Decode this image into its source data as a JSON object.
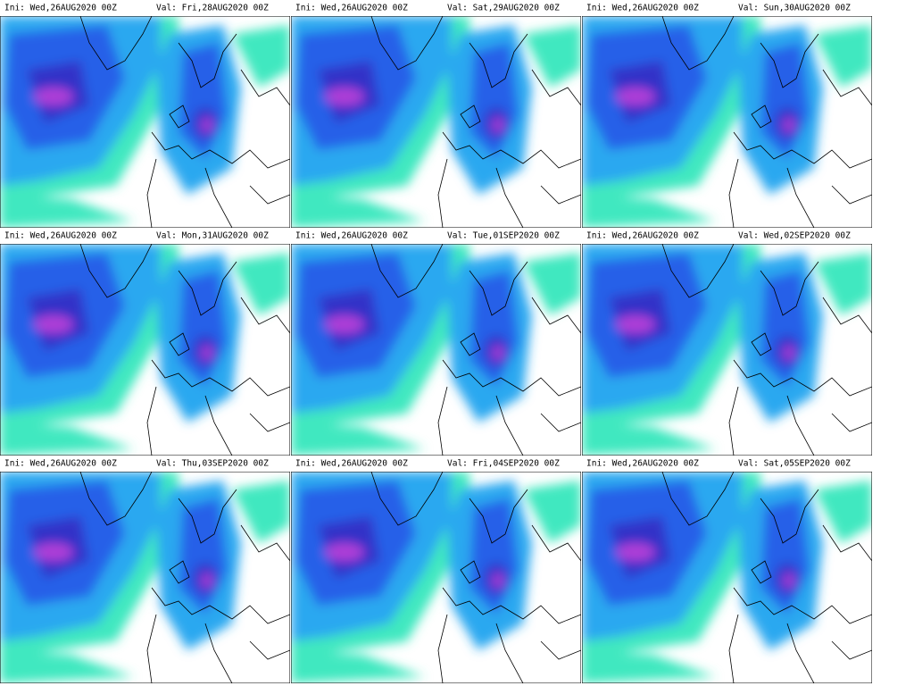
{
  "panels": [
    {
      "ini": "Ini: Wed,26AUG2020 00Z",
      "val": "Val: Fri,28AUG2020 00Z"
    },
    {
      "ini": "Ini: Wed,26AUG2020 00Z",
      "val": "Val: Sat,29AUG2020 00Z"
    },
    {
      "ini": "Ini: Wed,26AUG2020 00Z",
      "val": "Val: Sun,30AUG2020 00Z"
    },
    {
      "ini": "Ini: Wed,26AUG2020 00Z",
      "val": "Val: Mon,31AUG2020 00Z"
    },
    {
      "ini": "Ini: Wed,26AUG2020 00Z",
      "val": "Val: Tue,01SEP2020 00Z"
    },
    {
      "ini": "Ini: Wed,26AUG2020 00Z",
      "val": "Val: Wed,02SEP2020 00Z"
    },
    {
      "ini": "Ini: Wed,26AUG2020 00Z",
      "val": "Val: Thu,03SEP2020 00Z"
    },
    {
      "ini": "Ini: Wed,26AUG2020 00Z",
      "val": "Val: Fri,04SEP2020 00Z"
    },
    {
      "ini": "Ini: Wed,26AUG2020 00Z",
      "val": "Val: Sat,05SEP2020 00Z"
    }
  ]
}
